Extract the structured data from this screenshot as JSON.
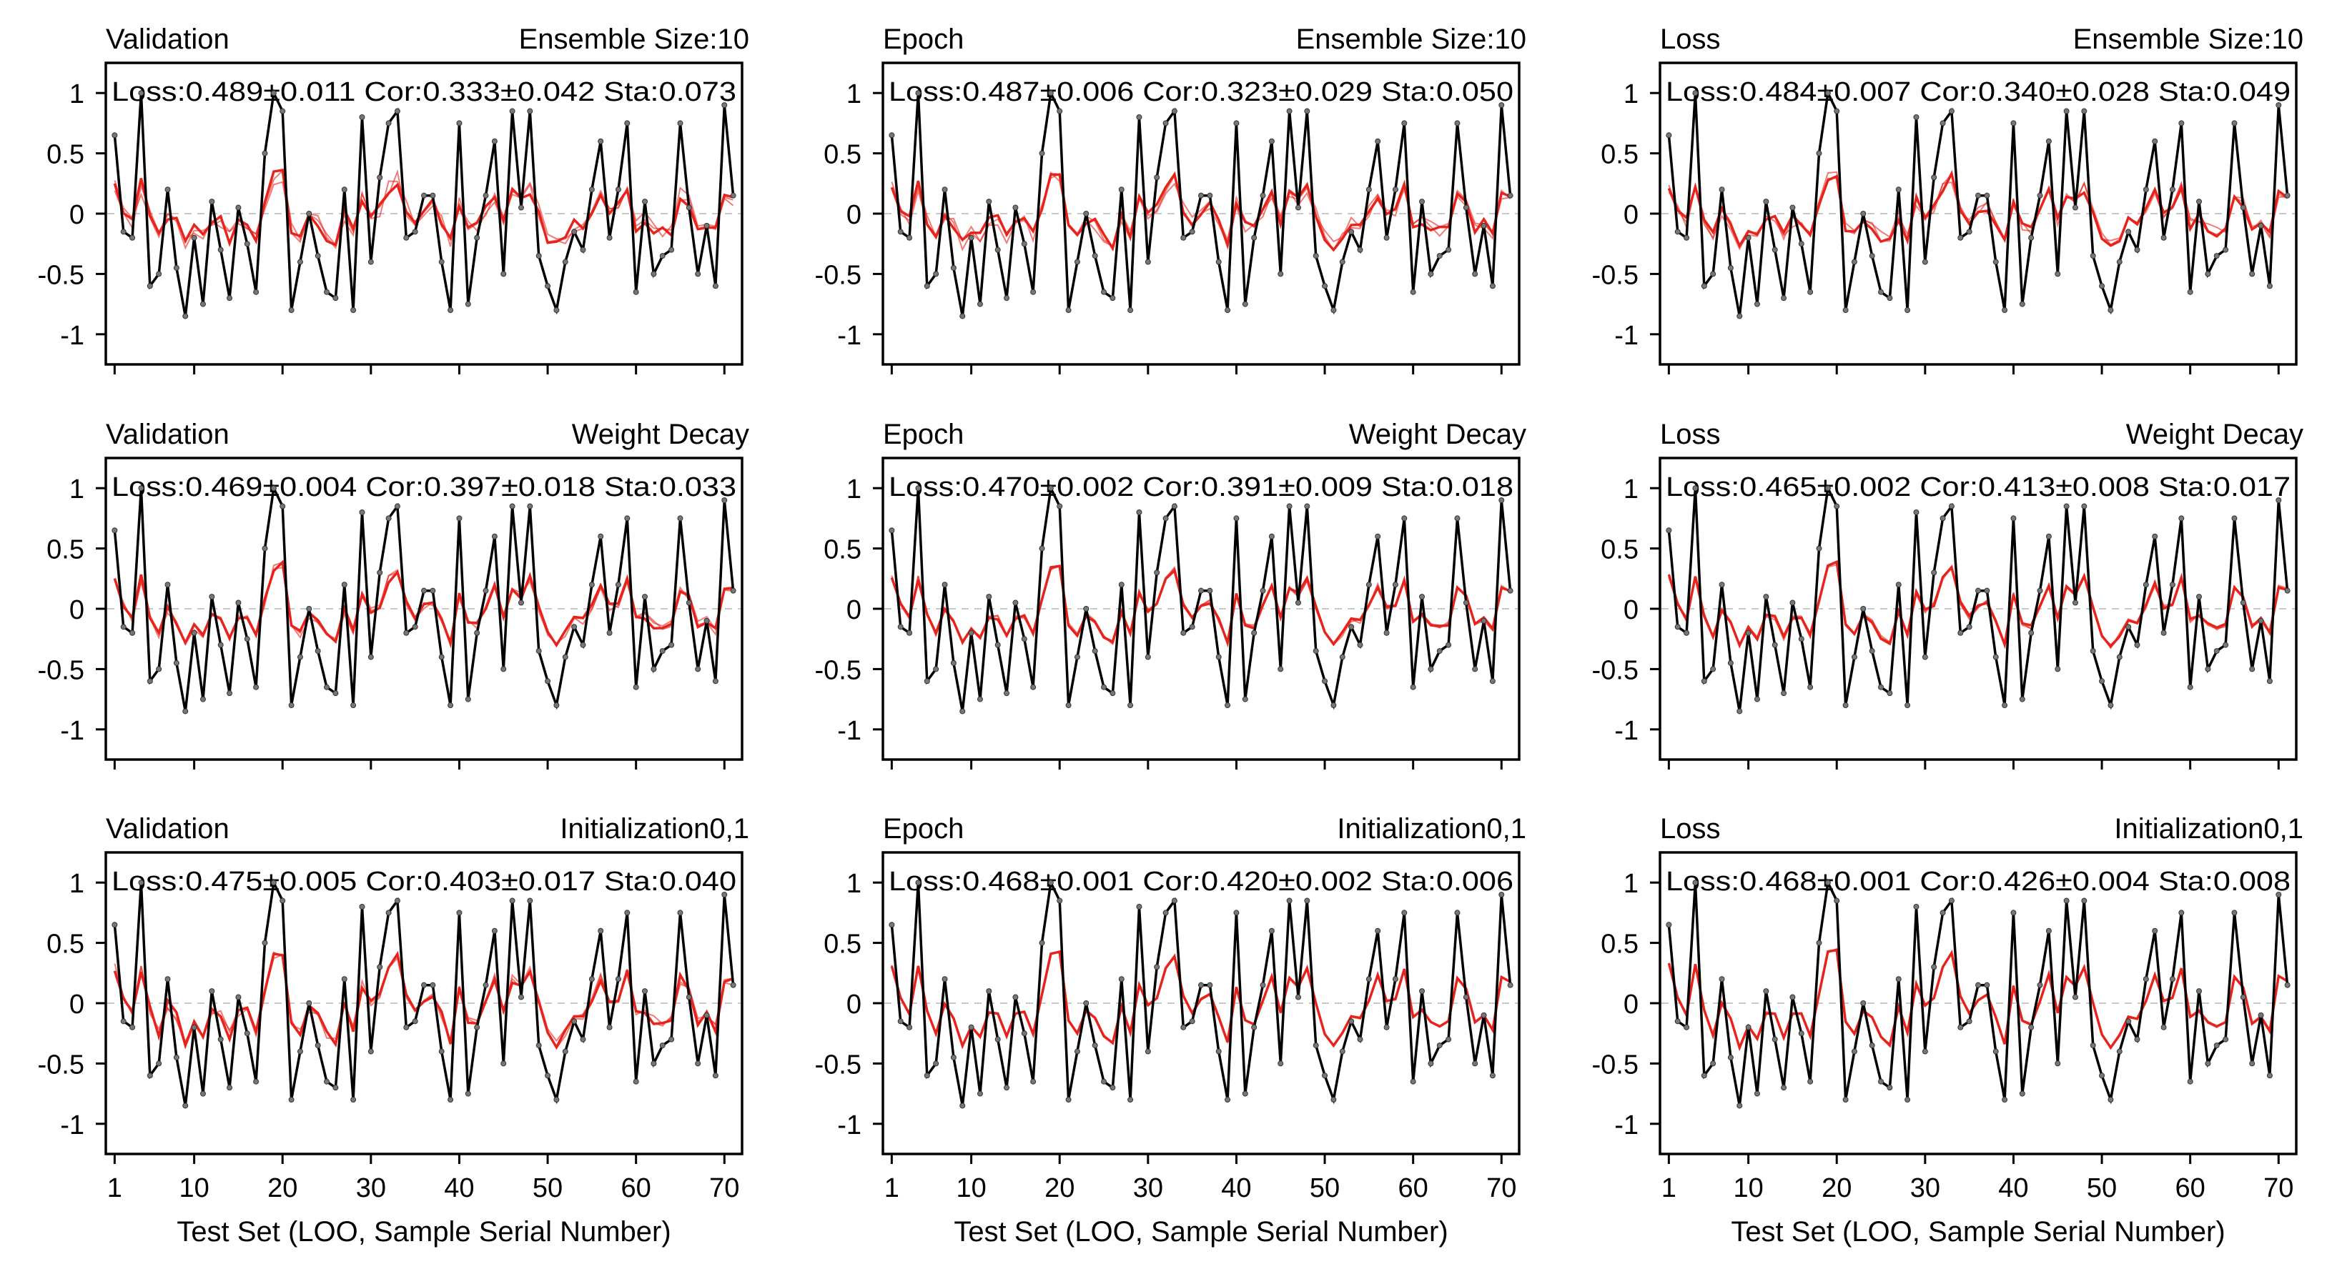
{
  "figure": {
    "xlabel": "Test Set (LOO, Sample Serial Number)"
  },
  "colors": {
    "observed": "#000000",
    "predicted": "#e8231c",
    "zero_line": "#c8c8c8"
  },
  "observed_series": [
    0.65,
    -0.15,
    -0.2,
    1.0,
    -0.6,
    -0.5,
    0.2,
    -0.45,
    -0.85,
    -0.2,
    -0.75,
    0.1,
    -0.3,
    -0.7,
    0.05,
    -0.25,
    -0.65,
    0.5,
    1.0,
    0.85,
    -0.8,
    -0.4,
    0.0,
    -0.35,
    -0.65,
    -0.7,
    0.2,
    -0.8,
    0.8,
    -0.4,
    0.3,
    0.75,
    0.85,
    -0.2,
    -0.15,
    0.15,
    0.15,
    -0.4,
    -0.8,
    0.75,
    -0.75,
    -0.2,
    0.15,
    0.6,
    -0.5,
    0.85,
    0.05,
    0.85,
    -0.35,
    -0.6,
    -0.8,
    -0.4,
    -0.15,
    -0.3,
    0.2,
    0.6,
    -0.2,
    0.2,
    0.75,
    -0.65,
    0.1,
    -0.5,
    -0.35,
    -0.3,
    0.75,
    0.05,
    -0.5,
    -0.1,
    -0.6,
    0.9,
    0.15
  ],
  "panels": [
    {
      "left": "Validation",
      "right": "Ensemble Size:10",
      "stats": "Loss:0.489±0.011 Cor:0.333±0.042 Sta:0.073"
    },
    {
      "left": "Epoch",
      "right": "Ensemble Size:10",
      "stats": "Loss:0.487±0.006 Cor:0.323±0.029 Sta:0.050"
    },
    {
      "left": "Loss",
      "right": "Ensemble Size:10",
      "stats": "Loss:0.484±0.007 Cor:0.340±0.028 Sta:0.049"
    },
    {
      "left": "Validation",
      "right": "Weight Decay",
      "stats": "Loss:0.469±0.004 Cor:0.397±0.018 Sta:0.033"
    },
    {
      "left": "Epoch",
      "right": "Weight Decay",
      "stats": "Loss:0.470±0.002 Cor:0.391±0.009 Sta:0.018"
    },
    {
      "left": "Loss",
      "right": "Weight Decay",
      "stats": "Loss:0.465±0.002 Cor:0.413±0.008 Sta:0.017"
    },
    {
      "left": "Validation",
      "right": "Initialization0,1",
      "stats": "Loss:0.475±0.005 Cor:0.403±0.017 Sta:0.040"
    },
    {
      "left": "Epoch",
      "right": "Initialization0,1",
      "stats": "Loss:0.468±0.001 Cor:0.420±0.002 Sta:0.006"
    },
    {
      "left": "Loss",
      "right": "Initialization0,1",
      "stats": "Loss:0.468±0.001 Cor:0.426±0.004 Sta:0.008"
    }
  ],
  "chart_data": {
    "type": "line",
    "x": [
      1,
      2,
      3,
      4,
      5,
      6,
      7,
      8,
      9,
      10,
      11,
      12,
      13,
      14,
      15,
      16,
      17,
      18,
      19,
      20,
      21,
      22,
      23,
      24,
      25,
      26,
      27,
      28,
      29,
      30,
      31,
      32,
      33,
      34,
      35,
      36,
      37,
      38,
      39,
      40,
      41,
      42,
      43,
      44,
      45,
      46,
      47,
      48,
      49,
      50,
      51,
      52,
      53,
      54,
      55,
      56,
      57,
      58,
      59,
      60,
      61,
      62,
      63,
      64,
      65,
      66,
      67,
      68,
      69,
      70,
      71
    ],
    "xlim": [
      0,
      72
    ],
    "ylim": [
      -1.25,
      1.25
    ],
    "xticks": [
      1,
      10,
      20,
      30,
      40,
      50,
      60,
      70
    ],
    "xtick_labels": [
      "1",
      "10",
      "20",
      "30",
      "40",
      "50",
      "60",
      "70"
    ],
    "yticks": [
      -1,
      -0.5,
      0,
      0.5,
      1
    ],
    "ytick_labels": [
      "-1",
      "-0.5",
      "0",
      "0.5",
      "1"
    ],
    "grid": false,
    "zero_reference_line": true,
    "layout": "3x3 panels",
    "prediction_scale": [
      0.35,
      0.35,
      0.35,
      0.4,
      0.4,
      0.42,
      0.45,
      0.48,
      0.5
    ],
    "prediction_spread": [
      0.07,
      0.05,
      0.05,
      0.033,
      0.018,
      0.017,
      0.04,
      0.006,
      0.008
    ]
  }
}
